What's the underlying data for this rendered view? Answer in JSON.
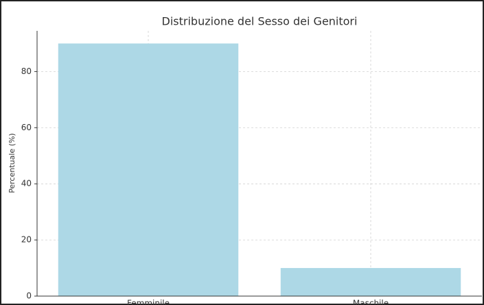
{
  "chart_data": {
    "type": "bar",
    "title": "Distribuzione del Sesso dei Genitori",
    "y_label": "Percentuale (%)",
    "categories": [
      "Femminile",
      "Maschile"
    ],
    "values": [
      90,
      10
    ],
    "color": "#add8e6",
    "ylim": [
      0,
      94.5
    ],
    "yticks": [
      0,
      20,
      40,
      60,
      80
    ],
    "grid": true
  }
}
